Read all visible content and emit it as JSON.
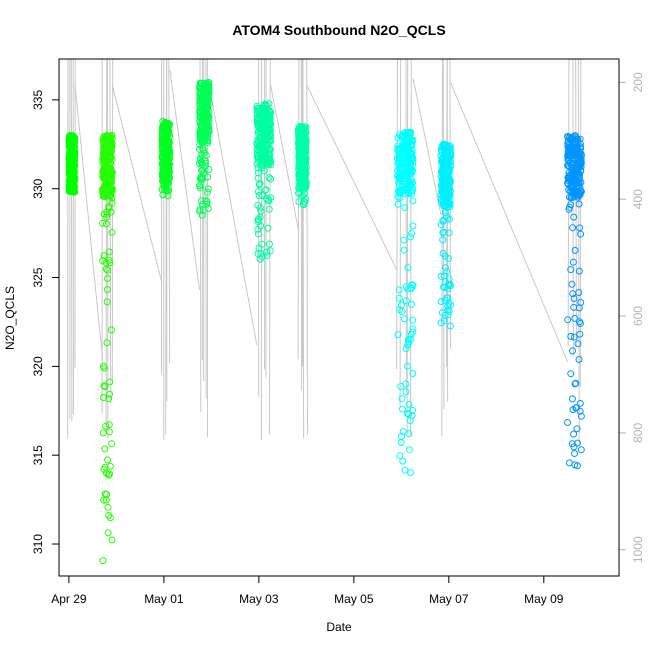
{
  "chart_data": {
    "type": "scatter",
    "title": "ATOM4 Southbound N2O_QCLS",
    "xlabel": "Date",
    "ylabel": "N2O_QCLS",
    "xlim": [
      "2018-04-28T19:00",
      "2018-05-10T14:00"
    ],
    "ylim": [
      308.2,
      337.3
    ],
    "x_ticks": [
      {
        "label": "Apr 29",
        "value": "2018-04-29"
      },
      {
        "label": "May 01",
        "value": "2018-05-01"
      },
      {
        "label": "May 03",
        "value": "2018-05-03"
      },
      {
        "label": "May 05",
        "value": "2018-05-05"
      },
      {
        "label": "May 07",
        "value": "2018-05-07"
      },
      {
        "label": "May 09",
        "value": "2018-05-09"
      }
    ],
    "y_ticks": [
      310,
      315,
      320,
      325,
      330,
      335
    ],
    "y_tick_labels": [
      "310",
      "315",
      "320",
      "325",
      "330",
      "335"
    ],
    "secondary_axis": {
      "side": "right",
      "reversed": true,
      "range": [
        1045,
        160
      ],
      "ticks": [
        200,
        400,
        600,
        800,
        1000
      ],
      "tick_labels": [
        "200",
        "400",
        "600",
        "800",
        "1000"
      ],
      "color": "#b4b4b4"
    },
    "series": [
      {
        "start": "2018-04-29T00:00",
        "end": "2018-04-29T03:00",
        "n2o_min": 329.8,
        "n2o_max": 333.0,
        "color": "#00ff00"
      },
      {
        "start": "2018-04-29T17:00",
        "end": "2018-04-29T22:00",
        "n2o_min": 309.0,
        "n2o_max": 333.0,
        "color": "#22ff00"
      },
      {
        "start": "2018-04-30T23:00",
        "end": "2018-05-01T03:00",
        "n2o_min": 329.5,
        "n2o_max": 333.8,
        "color": "#00ff22"
      },
      {
        "start": "2018-05-01T18:00",
        "end": "2018-05-01T23:00",
        "n2o_min": 328.5,
        "n2o_max": 336.0,
        "color": "#00ff55"
      },
      {
        "start": "2018-05-02T23:00",
        "end": "2018-05-03T06:00",
        "n2o_min": 326.0,
        "n2o_max": 334.8,
        "color": "#00ffa0"
      },
      {
        "start": "2018-05-03T20:00",
        "end": "2018-05-04T00:00",
        "n2o_min": 329.0,
        "n2o_max": 333.5,
        "color": "#00ffaa"
      },
      {
        "start": "2018-05-05T22:00",
        "end": "2018-05-06T06:00",
        "n2o_min": 314.0,
        "n2o_max": 333.2,
        "color": "#00ffff"
      },
      {
        "start": "2018-05-06T20:00",
        "end": "2018-05-07T01:00",
        "n2o_min": 322.0,
        "n2o_max": 332.5,
        "color": "#00f0ff"
      },
      {
        "start": "2018-05-09T12:00",
        "end": "2018-05-09T19:00",
        "n2o_min": 314.0,
        "n2o_max": 333.0,
        "color": "#0095ff"
      }
    ],
    "profile_line_color": "#c8c8c8",
    "grid": false,
    "legend": "none"
  }
}
